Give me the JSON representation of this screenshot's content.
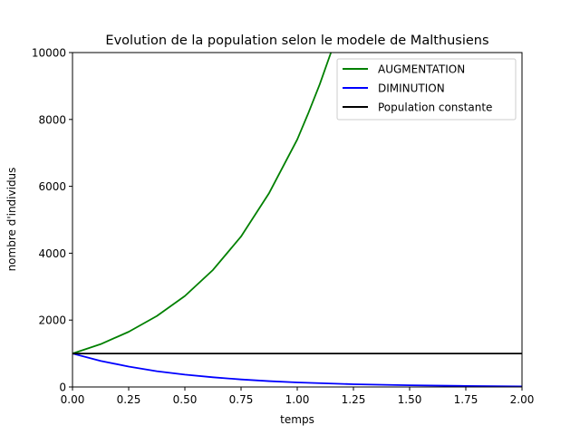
{
  "chart_data": {
    "type": "line",
    "title": "Evolution de la population selon le modele de Malthusiens",
    "xlabel": "temps",
    "ylabel": "nombre d'individus",
    "xlim": [
      0,
      2
    ],
    "ylim": [
      0,
      10000
    ],
    "x_ticks": [
      "0.00",
      "0.25",
      "0.50",
      "0.75",
      "1.00",
      "1.25",
      "1.50",
      "1.75",
      "2.00"
    ],
    "y_ticks": [
      "0",
      "2000",
      "4000",
      "6000",
      "8000",
      "10000"
    ],
    "grid": false,
    "legend_position": "top-right",
    "x": [
      0,
      0.25,
      0.5,
      0.75,
      1.0,
      1.25,
      1.5,
      1.75,
      2.0
    ],
    "series": [
      {
        "name": "AUGMENTATION",
        "color": "#008000",
        "x": [
          0,
          0.125,
          0.25,
          0.375,
          0.5,
          0.625,
          0.75,
          0.875,
          1.0,
          1.05,
          1.1,
          1.15,
          1.2
        ],
        "values": [
          1000,
          1280,
          1650,
          2120,
          2720,
          3500,
          4500,
          5800,
          7400,
          8200,
          9050,
          10000,
          11000
        ]
      },
      {
        "name": "DIMINUTION",
        "color": "#0000ff",
        "x": [
          0,
          0.125,
          0.25,
          0.375,
          0.5,
          0.625,
          0.75,
          0.875,
          1.0,
          1.25,
          1.5,
          1.75,
          2.0
        ],
        "values": [
          1000,
          780,
          610,
          470,
          370,
          290,
          225,
          175,
          135,
          82,
          50,
          30,
          18
        ]
      },
      {
        "name": "Population constante",
        "color": "#000000",
        "x": [
          0,
          2
        ],
        "values": [
          1000,
          1000
        ]
      }
    ]
  }
}
